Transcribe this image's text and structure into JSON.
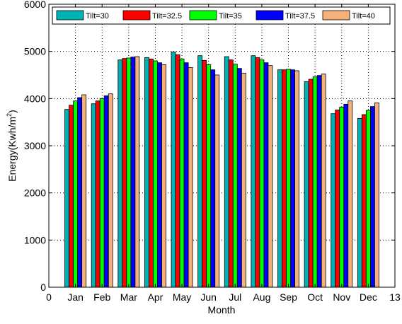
{
  "chart_data": {
    "type": "bar",
    "xlabel": "Month",
    "ylabel_main": "Energy(Kwh/m",
    "ylabel_sup": "2",
    "ylabel_end": ")",
    "xlim": [
      0,
      13
    ],
    "ylim": [
      0,
      6000
    ],
    "xticks": [
      {
        "x": 0,
        "label": "0"
      },
      {
        "x": 1,
        "label": "Jan"
      },
      {
        "x": 2,
        "label": "Feb"
      },
      {
        "x": 3,
        "label": "Mar"
      },
      {
        "x": 4,
        "label": "Apr"
      },
      {
        "x": 5,
        "label": "May"
      },
      {
        "x": 6,
        "label": "Jun"
      },
      {
        "x": 7,
        "label": "Jul"
      },
      {
        "x": 8,
        "label": "Aug"
      },
      {
        "x": 9,
        "label": "Sep"
      },
      {
        "x": 10,
        "label": "Oct"
      },
      {
        "x": 11,
        "label": "Nov"
      },
      {
        "x": 12,
        "label": "Dec"
      },
      {
        "x": 13,
        "label": "13"
      }
    ],
    "yticks": [
      0,
      1000,
      2000,
      3000,
      4000,
      5000,
      6000
    ],
    "grid": true,
    "legend_position": "top",
    "categories": [
      "Jan",
      "Feb",
      "Mar",
      "Apr",
      "May",
      "Jun",
      "Jul",
      "Aug",
      "Sep",
      "Oct",
      "Nov",
      "Dec"
    ],
    "series": [
      {
        "name": "Tilt=30",
        "color": "#00b3b3",
        "values": [
          3770,
          3890,
          4820,
          4870,
          4990,
          4910,
          4890,
          4910,
          4610,
          4360,
          3680,
          3580
        ]
      },
      {
        "name": "Tilt=32.5",
        "color": "#ff0000",
        "values": [
          3860,
          3950,
          4850,
          4840,
          4930,
          4810,
          4820,
          4870,
          4610,
          4410,
          3760,
          3660
        ]
      },
      {
        "name": "Tilt=35",
        "color": "#00ff00",
        "values": [
          3950,
          4000,
          4860,
          4800,
          4840,
          4720,
          4730,
          4820,
          4620,
          4460,
          3820,
          3750
        ]
      },
      {
        "name": "Tilt=37.5",
        "color": "#0000ff",
        "values": [
          4020,
          4060,
          4880,
          4760,
          4760,
          4610,
          4640,
          4760,
          4610,
          4490,
          3880,
          3830
        ]
      },
      {
        "name": "Tilt=40",
        "color": "#f4b27a",
        "values": [
          4080,
          4100,
          4890,
          4720,
          4660,
          4500,
          4540,
          4700,
          4590,
          4520,
          3950,
          3910
        ]
      }
    ]
  }
}
